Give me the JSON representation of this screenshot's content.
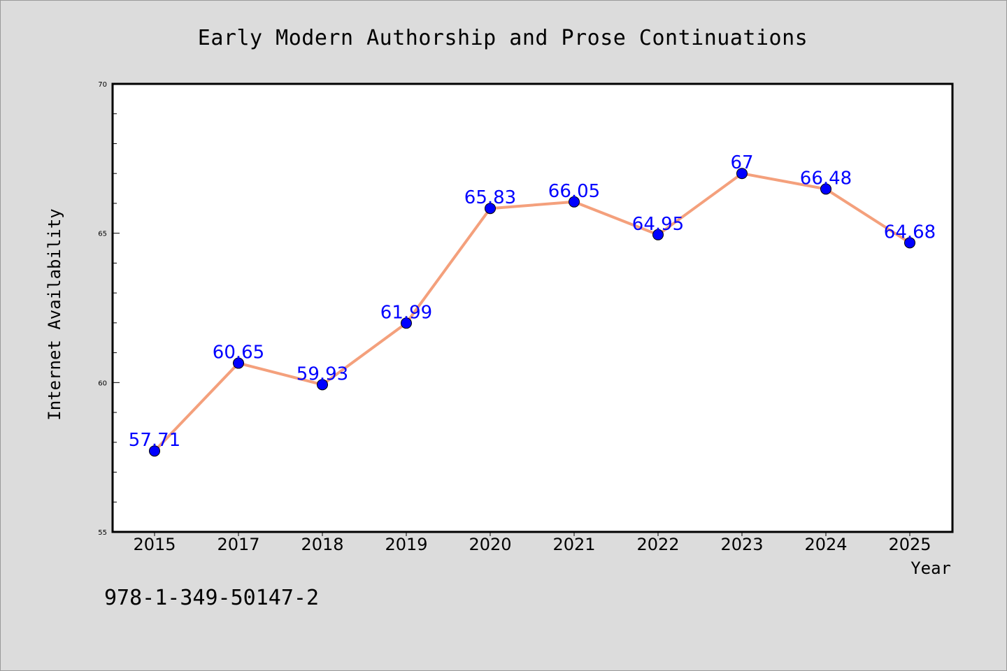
{
  "chart_data": {
    "type": "line",
    "title": "Early Modern Authorship and Prose Continuations",
    "xlabel": "Year",
    "ylabel": "Internet Availability",
    "categories": [
      "2015",
      "2017",
      "2018",
      "2019",
      "2020",
      "2021",
      "2022",
      "2023",
      "2024",
      "2025"
    ],
    "values": [
      57.71,
      60.65,
      59.93,
      61.99,
      65.83,
      66.05,
      64.95,
      67,
      66.48,
      64.68
    ],
    "data_labels": [
      "57.71",
      "60.65",
      "59.93",
      "61.99",
      "65.83",
      "66.05",
      "64.95",
      "67",
      "66.48",
      "64.68"
    ],
    "ylim": [
      55,
      70
    ],
    "yticks": [
      55,
      60,
      65,
      70
    ],
    "ytick_labels": [
      "55",
      "60",
      "65",
      "70"
    ],
    "grid": false,
    "line_color": "#f4a07c",
    "marker_color": "#0000ff",
    "label_color": "#0000ff"
  },
  "caption": "978-1-349-50147-2"
}
